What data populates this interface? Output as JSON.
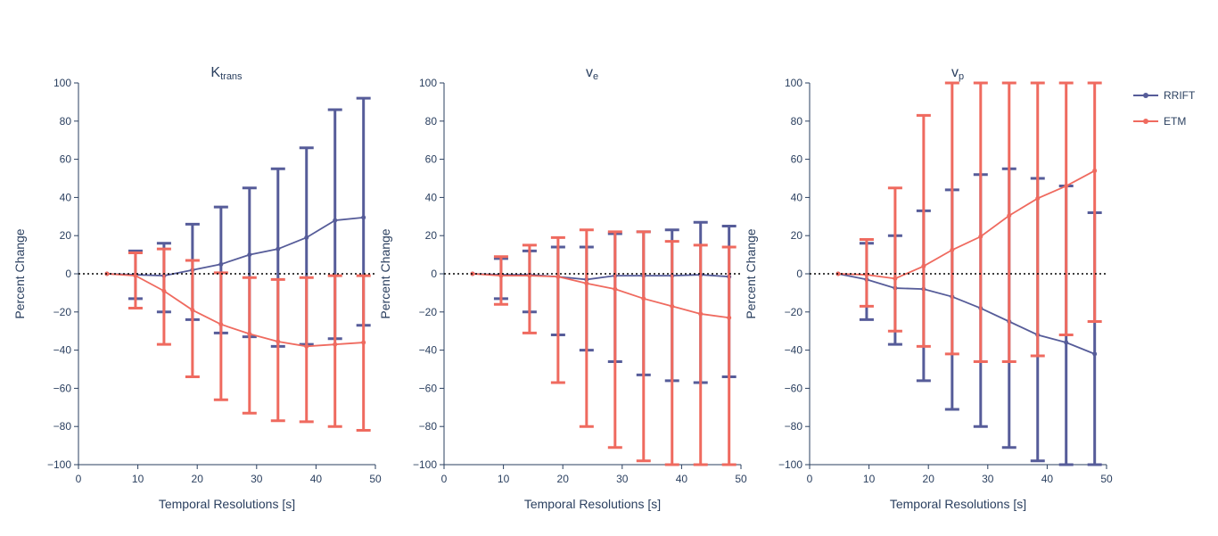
{
  "colors": {
    "rrift": "#565c99",
    "etm": "#ef6a5f",
    "axis": "#2a3f5f",
    "zero": "#000000"
  },
  "legend": [
    {
      "name": "RRIFT",
      "color": "#565c99"
    },
    {
      "name": "ETM",
      "color": "#ef6a5f"
    }
  ],
  "chart_data": [
    {
      "type": "line",
      "title": {
        "base": "K",
        "sub": "trans"
      },
      "xlabel": "Temporal Resolutions [s]",
      "ylabel": "Percent Change",
      "xlim": [
        0,
        50
      ],
      "ylim": [
        -100,
        100
      ],
      "xticks": [
        0,
        10,
        20,
        30,
        40,
        50
      ],
      "yticks": [
        -100,
        -80,
        -60,
        -40,
        -20,
        0,
        20,
        40,
        60,
        80,
        100
      ],
      "x": [
        4.8,
        9.6,
        14.4,
        19.2,
        24.0,
        28.8,
        33.6,
        38.4,
        43.2,
        48.0
      ],
      "series": [
        {
          "name": "RRIFT",
          "values": [
            0,
            -0.5,
            -1,
            2,
            5,
            10,
            13,
            19,
            28,
            29.5
          ],
          "upper": [
            0,
            12,
            16,
            26,
            35,
            45,
            55,
            66,
            86,
            92
          ],
          "lower": [
            0,
            -13,
            -20,
            -24,
            -31,
            -33,
            -38,
            -37,
            -34,
            -27
          ]
        },
        {
          "name": "ETM",
          "values": [
            0,
            -1,
            -9,
            -19,
            -26.5,
            -31.5,
            -35.5,
            -38,
            -37,
            -36
          ],
          "upper": [
            0,
            11,
            13,
            7,
            0.5,
            -2,
            -3,
            -2,
            -1,
            -1
          ],
          "lower": [
            0,
            -18,
            -37,
            -54,
            -66,
            -73,
            -77,
            -77.5,
            -80,
            -82
          ]
        }
      ]
    },
    {
      "type": "line",
      "title": {
        "base": "v",
        "sub": "e"
      },
      "xlabel": "Temporal Resolutions [s]",
      "ylabel": "Percent Change",
      "xlim": [
        0,
        50
      ],
      "ylim": [
        -100,
        100
      ],
      "xticks": [
        0,
        10,
        20,
        30,
        40,
        50
      ],
      "yticks": [
        -100,
        -80,
        -60,
        -40,
        -20,
        0,
        20,
        40,
        60,
        80,
        100
      ],
      "x": [
        4.8,
        9.6,
        14.4,
        19.2,
        24.0,
        28.8,
        33.6,
        38.4,
        43.2,
        48.0
      ],
      "series": [
        {
          "name": "RRIFT",
          "values": [
            0,
            -0.5,
            -0.5,
            -1.5,
            -3,
            -1,
            -1,
            -1,
            -0.5,
            -1.5
          ],
          "upper": [
            0,
            8,
            12,
            14,
            14,
            21,
            22,
            23,
            27,
            25
          ],
          "lower": [
            0,
            -13,
            -20,
            -32,
            -40,
            -46,
            -53,
            -56,
            -57,
            -54
          ]
        },
        {
          "name": "ETM",
          "values": [
            0,
            -1,
            -1,
            -1.5,
            -5,
            -8,
            -13,
            -17,
            -21,
            -23
          ],
          "upper": [
            0,
            9,
            15,
            19,
            23,
            22,
            22,
            17,
            15,
            14
          ],
          "lower": [
            0,
            -16,
            -31,
            -57,
            -80,
            -91,
            -98,
            -100,
            -100,
            -100
          ]
        }
      ]
    },
    {
      "type": "line",
      "title": {
        "base": "v",
        "sub": "p"
      },
      "xlabel": "Temporal Resolutions [s]",
      "ylabel": "Percent Change",
      "xlim": [
        0,
        50
      ],
      "ylim": [
        -100,
        100
      ],
      "xticks": [
        0,
        10,
        20,
        30,
        40,
        50
      ],
      "yticks": [
        -100,
        -80,
        -60,
        -40,
        -20,
        0,
        20,
        40,
        60,
        80,
        100
      ],
      "x": [
        4.8,
        9.6,
        14.4,
        19.2,
        24.0,
        28.8,
        33.6,
        38.4,
        43.2,
        48.0
      ],
      "series": [
        {
          "name": "RRIFT",
          "values": [
            0,
            -3,
            -7.5,
            -8,
            -12,
            -18,
            -25,
            -32,
            -36,
            -42
          ],
          "upper": [
            0,
            16,
            20,
            33,
            44,
            52,
            55,
            50,
            46,
            32
          ],
          "lower": [
            0,
            -24,
            -37,
            -56,
            -71,
            -80,
            -91,
            -98,
            -100,
            -100
          ]
        },
        {
          "name": "ETM",
          "values": [
            0,
            -0.5,
            -2.5,
            4,
            12.5,
            19.5,
            30.5,
            39.5,
            46,
            54
          ],
          "upper": [
            0,
            18,
            45,
            83,
            100,
            100,
            100,
            100,
            100,
            100
          ],
          "lower": [
            0,
            -17,
            -30,
            -38,
            -42,
            -46,
            -46,
            -43,
            -32,
            -25
          ]
        }
      ]
    }
  ]
}
